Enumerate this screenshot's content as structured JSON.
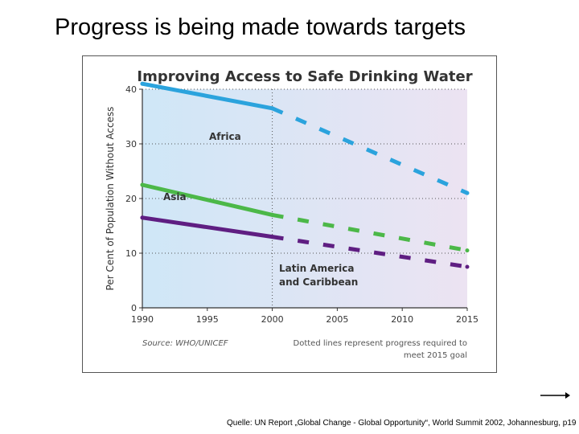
{
  "slide": {
    "title": "Progress is being made towards targets",
    "caption": "Quelle: UN Report „Global Change - Global Opportunity“, World Summit 2002, Johannesburg,  p19"
  },
  "colors": {
    "africa": "#2ba3dd",
    "asia": "#4cb848",
    "latin_america": "#5f1e82",
    "grid": "#555555",
    "axis": "#333333",
    "text": "#333333",
    "bg_left": "#cfe7f7",
    "bg_right": "#ece3f2"
  },
  "chart_data": {
    "type": "line",
    "title": "Improving Access to Safe Drinking Water",
    "xlabel": "",
    "ylabel": "Per Cent of Population Without Access",
    "xlim": [
      1990,
      2015
    ],
    "ylim": [
      0,
      40
    ],
    "xticks": [
      1990,
      1995,
      2000,
      2005,
      2010,
      2015
    ],
    "yticks": [
      0,
      10,
      20,
      30,
      40
    ],
    "gridlines": "dotted horizontal at 10, 20, 30, 40 and vertical at 2000",
    "series": [
      {
        "name": "Africa",
        "key": "africa",
        "label": "Africa",
        "actual": {
          "x": [
            1990,
            2000
          ],
          "y": [
            41,
            36.5
          ]
        },
        "projected": {
          "x": [
            2000,
            2015
          ],
          "y": [
            36.5,
            21
          ]
        }
      },
      {
        "name": "Asia",
        "key": "asia",
        "label": "Asia",
        "actual": {
          "x": [
            1990,
            2000
          ],
          "y": [
            22.5,
            17
          ]
        },
        "projected": {
          "x": [
            2000,
            2015
          ],
          "y": [
            17,
            10.5
          ]
        }
      },
      {
        "name": "Latin America and Caribbean",
        "key": "latin_america",
        "label_lines": [
          "Latin America",
          "and Caribbean"
        ],
        "actual": {
          "x": [
            1990,
            2000
          ],
          "y": [
            16.5,
            13
          ]
        },
        "projected": {
          "x": [
            2000,
            2015
          ],
          "y": [
            13,
            7.5
          ]
        }
      }
    ],
    "source": "Source: WHO/UNICEF",
    "note_lines": [
      "Dotted lines represent progress required to",
      "meet 2015 goal"
    ]
  }
}
